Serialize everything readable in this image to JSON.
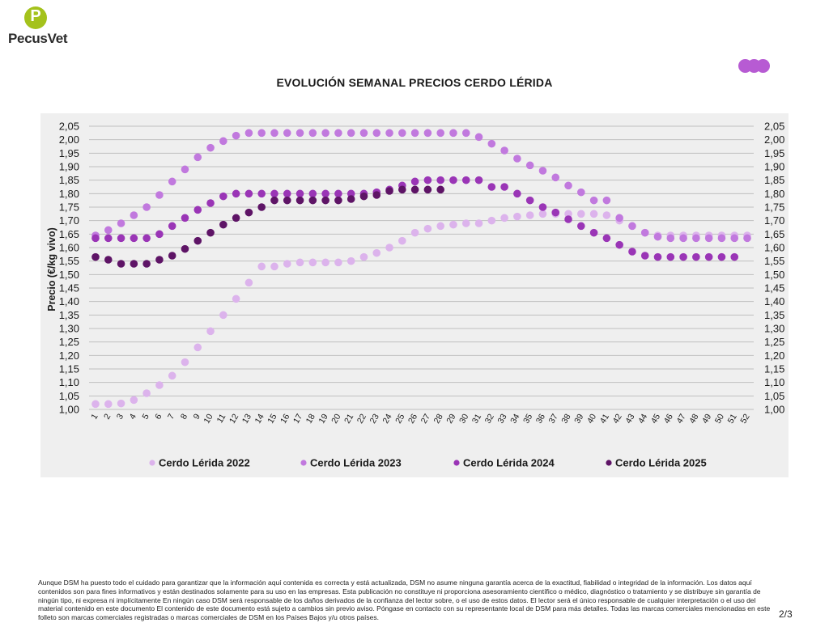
{
  "brand": {
    "name": "PecusVet",
    "logo_letter": "P"
  },
  "colors": {
    "panel": "#efefef",
    "grid": "#bfbfbf",
    "dots": "#b75bd3"
  },
  "chart_data": {
    "type": "scatter",
    "title": "EVOLUCIÓN SEMANAL PRECIOS CERDO LÉRIDA",
    "ylabel": "Precio (€/kg vivo)",
    "xlabel": "",
    "ylim": [
      1.0,
      2.05
    ],
    "ytick_step": 0.05,
    "ytick_labels": [
      "1,00",
      "1,05",
      "1,10",
      "1,15",
      "1,20",
      "1,25",
      "1,30",
      "1,35",
      "1,40",
      "1,45",
      "1,50",
      "1,55",
      "1,60",
      "1,65",
      "1,70",
      "1,75",
      "1,80",
      "1,85",
      "1,90",
      "1,95",
      "2,00",
      "2,05"
    ],
    "x": [
      "1",
      "2",
      "3",
      "4",
      "5",
      "6",
      "7",
      "8",
      "9",
      "10",
      "11",
      "12",
      "13",
      "14",
      "15",
      "16",
      "17",
      "18",
      "19",
      "20",
      "21",
      "22",
      "23",
      "24",
      "25",
      "26",
      "27",
      "28",
      "29",
      "30",
      "31",
      "32",
      "33",
      "34",
      "35",
      "36",
      "37",
      "38",
      "39",
      "40",
      "41",
      "42",
      "43",
      "44",
      "45",
      "46",
      "47",
      "48",
      "49",
      "50",
      "51",
      "52"
    ],
    "grid": true,
    "legend_position": "bottom",
    "series": [
      {
        "name": "Cerdo Lérida 2022",
        "color": "#dcb3ec",
        "values": [
          1.02,
          1.02,
          1.022,
          1.035,
          1.06,
          1.09,
          1.125,
          1.175,
          1.23,
          1.29,
          1.35,
          1.41,
          1.47,
          1.53,
          1.53,
          1.54,
          1.545,
          1.545,
          1.545,
          1.545,
          1.55,
          1.565,
          1.58,
          1.6,
          1.625,
          1.655,
          1.67,
          1.68,
          1.685,
          1.69,
          1.69,
          1.7,
          1.71,
          1.715,
          1.72,
          1.725,
          1.725,
          1.725,
          1.725,
          1.725,
          1.72,
          1.7,
          1.68,
          1.655,
          1.645,
          1.645,
          1.645,
          1.645,
          1.645,
          1.645,
          1.645,
          1.645
        ]
      },
      {
        "name": "Cerdo Lérida 2023",
        "color": "#c179de",
        "values": [
          1.645,
          1.665,
          1.69,
          1.72,
          1.75,
          1.795,
          1.845,
          1.89,
          1.935,
          1.97,
          1.995,
          2.015,
          2.025,
          2.025,
          2.025,
          2.025,
          2.025,
          2.025,
          2.025,
          2.025,
          2.025,
          2.025,
          2.025,
          2.025,
          2.025,
          2.025,
          2.025,
          2.025,
          2.025,
          2.025,
          2.01,
          1.985,
          1.96,
          1.93,
          1.905,
          1.885,
          1.86,
          1.83,
          1.805,
          1.775,
          1.775,
          1.71,
          1.68,
          1.655,
          1.64,
          1.635,
          1.635,
          1.635,
          1.635,
          1.635,
          1.635,
          1.635
        ]
      },
      {
        "name": "Cerdo Lérida 2024",
        "color": "#9a35b6",
        "values": [
          1.635,
          1.635,
          1.635,
          1.635,
          1.635,
          1.65,
          1.68,
          1.71,
          1.74,
          1.765,
          1.79,
          1.8,
          1.8,
          1.8,
          1.8,
          1.8,
          1.8,
          1.8,
          1.8,
          1.8,
          1.8,
          1.8,
          1.805,
          1.815,
          1.83,
          1.845,
          1.85,
          1.85,
          1.85,
          1.85,
          1.85,
          1.825,
          1.825,
          1.8,
          1.775,
          1.75,
          1.73,
          1.705,
          1.68,
          1.655,
          1.635,
          1.61,
          1.585,
          1.57,
          1.565,
          1.565,
          1.565,
          1.565,
          1.565,
          1.565,
          1.565,
          null
        ]
      },
      {
        "name": "Cerdo Lérida 2025",
        "color": "#5e1466",
        "values": [
          1.565,
          1.555,
          1.54,
          1.54,
          1.54,
          1.555,
          1.57,
          1.595,
          1.625,
          1.655,
          1.685,
          1.71,
          1.73,
          1.75,
          1.775,
          1.775,
          1.775,
          1.775,
          1.775,
          1.775,
          1.78,
          1.79,
          1.795,
          1.81,
          1.815,
          1.815,
          1.815,
          1.815,
          null,
          null,
          null,
          null,
          null,
          null,
          null,
          null,
          null,
          null,
          null,
          null,
          null,
          null,
          null,
          null,
          null,
          null,
          null,
          null,
          null,
          null,
          null,
          null
        ]
      }
    ]
  },
  "footer": {
    "disclaimer": "Aunque DSM ha puesto todo el cuidado para garantizar que la información aquí contenida es correcta y está actualizada, DSM no asume ninguna garantía acerca de la exactitud, fiabilidad o integridad de la información. Los datos aquí contenidos son para fines informativos y están destinados solamente para su uso en las empresas. Esta publicación no constituye ni proporciona asesoramiento científico o médico, diagnóstico o tratamiento y se distribuye sin garantía de ningún tipo, ni expresa ni implícitamente En ningún caso DSM será responsable de los daños derivados de la confianza del lector sobre, o el uso de estos datos. El lector será el único responsable de cualquier interpretación o el uso del material contenido en este documento El contenido de este documento está sujeto a cambios sin previo aviso. Póngase en contacto con su representante local de DSM para más detalles. Todas las marcas comerciales mencionadas en este folleto son marcas comerciales registradas o marcas comerciales de DSM en los Países Bajos y/u otros países.",
    "page": "2/3"
  }
}
